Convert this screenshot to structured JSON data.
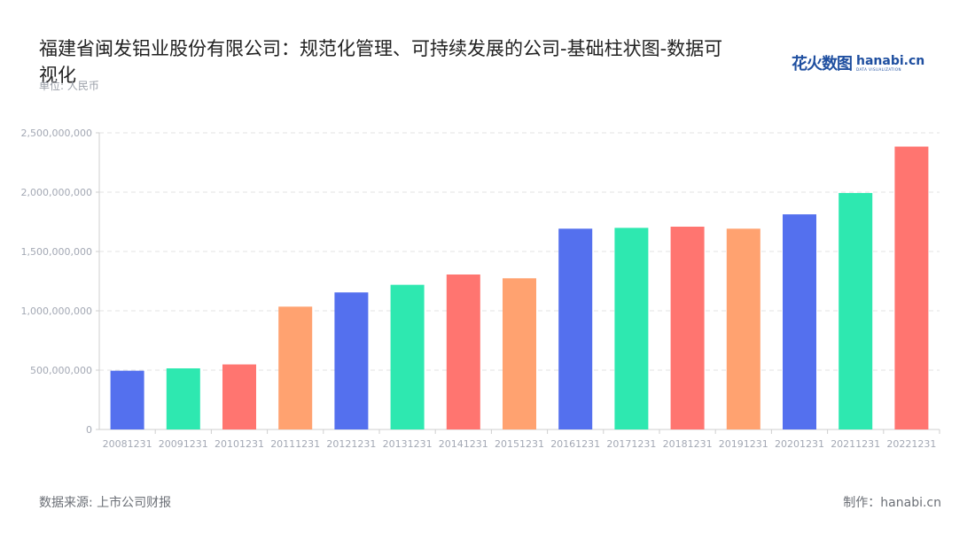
{
  "header": {
    "title": "福建省闽发铝业股份有限公司：规范化管理、可持续发展的公司-基础柱状图-数据可视化",
    "unit": "单位: 人民币"
  },
  "logo": {
    "cn": "花火数图",
    "en": "hanabi.cn",
    "sub": "DATA VISUALIZATION"
  },
  "footer": {
    "source": "数据来源: 上市公司财报",
    "credit": "制作：hanabi.cn"
  },
  "colors": {
    "blue": "#5470ee",
    "green": "#2ee8b0",
    "red": "#ff7570",
    "orange": "#ffa270",
    "grid": "#e3e3e3",
    "axis": "#cfcfcf",
    "tick_text": "#a3a8b4"
  },
  "chart_data": {
    "type": "bar",
    "title": "福建省闽发铝业股份有限公司：规范化管理、可持续发展的公司-基础柱状图-数据可视化",
    "xlabel": "",
    "ylabel": "单位: 人民币",
    "ylim": [
      0,
      2500000000
    ],
    "yticks": [
      0,
      500000000,
      1000000000,
      1500000000,
      2000000000,
      2500000000
    ],
    "ytick_labels": [
      "0",
      "500,000,000",
      "1,000,000,000",
      "1,500,000,000",
      "2,000,000,000",
      "2,500,000,000"
    ],
    "grid": true,
    "legend": null,
    "categories": [
      "20081231",
      "20091231",
      "20101231",
      "20111231",
      "20121231",
      "20131231",
      "20141231",
      "20151231",
      "20161231",
      "20171231",
      "20181231",
      "20191231",
      "20201231",
      "20211231",
      "20221231"
    ],
    "values": [
      495000000,
      515000000,
      548000000,
      1035000000,
      1155000000,
      1219000000,
      1306000000,
      1274000000,
      1692000000,
      1699000000,
      1709000000,
      1692000000,
      1813000000,
      1993000000,
      2384000000
    ],
    "bar_colors": [
      "#5470ee",
      "#2ee8b0",
      "#ff7570",
      "#ffa270",
      "#5470ee",
      "#2ee8b0",
      "#ff7570",
      "#ffa270",
      "#5470ee",
      "#2ee8b0",
      "#ff7570",
      "#ffa270",
      "#5470ee",
      "#2ee8b0",
      "#ff7570"
    ]
  }
}
